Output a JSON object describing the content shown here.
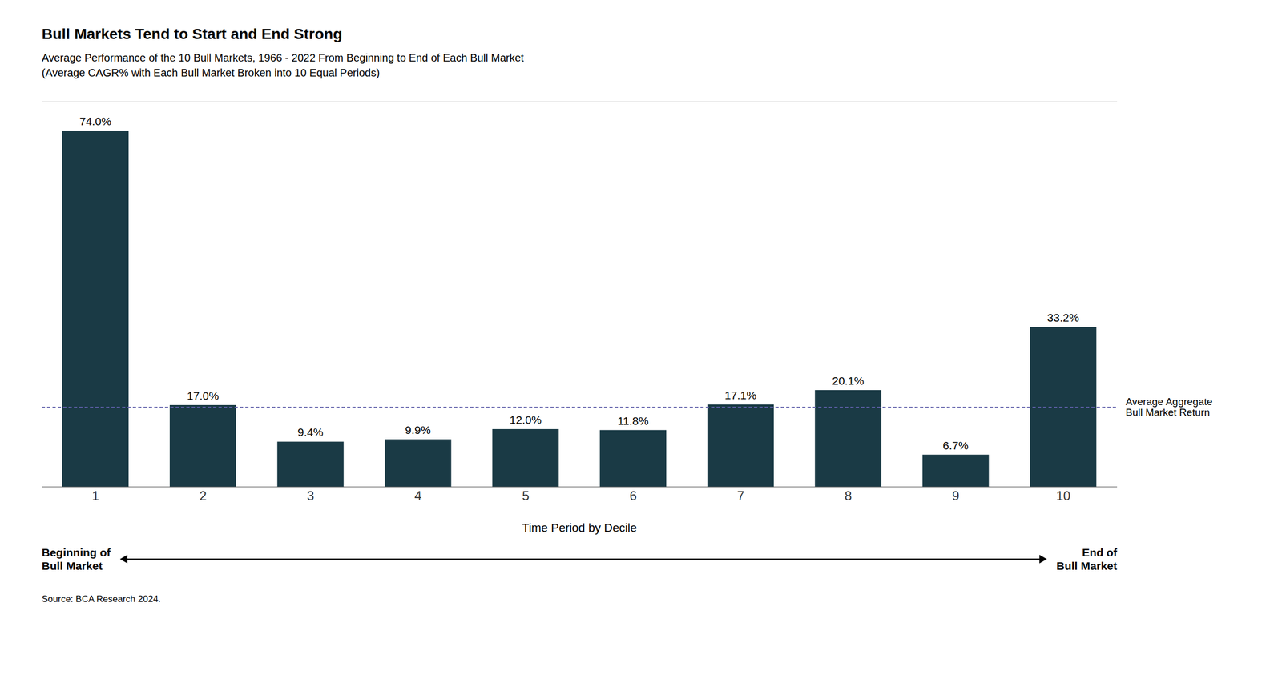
{
  "chart_data": {
    "type": "bar",
    "title": "Bull Markets Tend to Start and End Strong",
    "subtitle": [
      "Average Performance of the 10 Bull Markets, 1966 - 2022 From Beginning to End of Each Bull Market",
      "(Average CAGR% with Each Bull Market Broken into 10 Equal Periods)"
    ],
    "x_label": "Time Period by Decile",
    "categories": [
      "1",
      "2",
      "3",
      "4",
      "5",
      "6",
      "7",
      "8",
      "9",
      "10"
    ],
    "values": [
      74.0,
      17.0,
      9.4,
      9.9,
      12.0,
      11.8,
      17.1,
      20.1,
      6.7,
      33.2
    ],
    "value_labels": [
      "74.0%",
      "17.0%",
      "9.4%",
      "9.9%",
      "12.0%",
      "11.8%",
      "17.1%",
      "20.1%",
      "6.7%",
      "33.2%"
    ],
    "data_labels": true,
    "color": "#1a3a45",
    "ylim": [
      0,
      80
    ],
    "yticks": [
      0,
      20,
      40,
      60,
      80
    ],
    "grid": true,
    "tick_labels": "x",
    "reference_line": {
      "y": 16.5,
      "label": [
        "Average Aggregate",
        "Bull Market Return"
      ],
      "color": "#6060aa",
      "line_style": "dashed"
    },
    "arrow_labels": [
      [
        "Beginning of",
        "Bull Market"
      ],
      [
        "End of",
        "Bull Market"
      ]
    ],
    "source": "Source: BCA Research 2024."
  }
}
